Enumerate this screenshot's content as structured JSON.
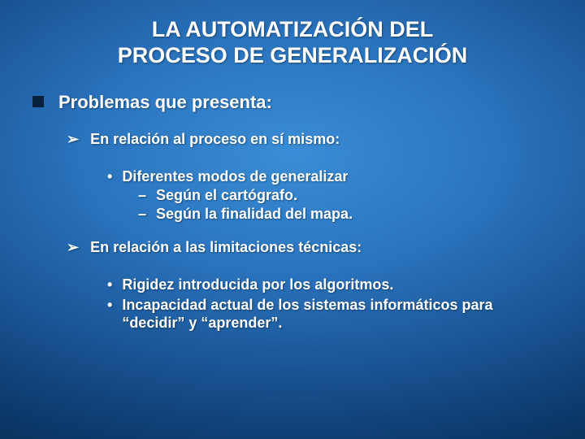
{
  "slide": {
    "background": {
      "gradient_center": "#3a8dd6",
      "gradient_mid1": "#2a73bd",
      "gradient_mid2": "#1a5494",
      "gradient_mid3": "#0d3b6e",
      "gradient_edge": "#062443"
    },
    "text_color": "#ffffff",
    "bullet_color": "#06203d",
    "title": {
      "line1": "LA AUTOMATIZACIÓN DEL",
      "line2": "PROCESO DE GENERALIZACIÓN",
      "fontsize": 27,
      "weight": "bold"
    },
    "lvl1": {
      "text": "Problemas que presenta:",
      "fontsize": 22,
      "bullet": "square"
    },
    "lvl2a": {
      "text": "En relación al proceso en sí mismo:",
      "fontsize": 18,
      "bullet": "arrow"
    },
    "lvl3a": {
      "text": "Diferentes modos de generalizar",
      "fontsize": 18,
      "bullet": "dot"
    },
    "lvl4a": {
      "text": "Según el cartógrafo.",
      "fontsize": 18,
      "bullet": "dash"
    },
    "lvl4b": {
      "text": "Según la finalidad del mapa.",
      "fontsize": 18,
      "bullet": "dash"
    },
    "lvl2b": {
      "text": "En relación a las limitaciones técnicas:",
      "fontsize": 18,
      "bullet": "arrow"
    },
    "lvl3b": {
      "text": "Rigidez introducida por los algoritmos.",
      "fontsize": 18,
      "bullet": "dot"
    },
    "lvl3c": {
      "text": "Incapacidad actual de los sistemas informáticos para “decidir” y “aprender”.",
      "fontsize": 18,
      "bullet": "dot"
    }
  }
}
